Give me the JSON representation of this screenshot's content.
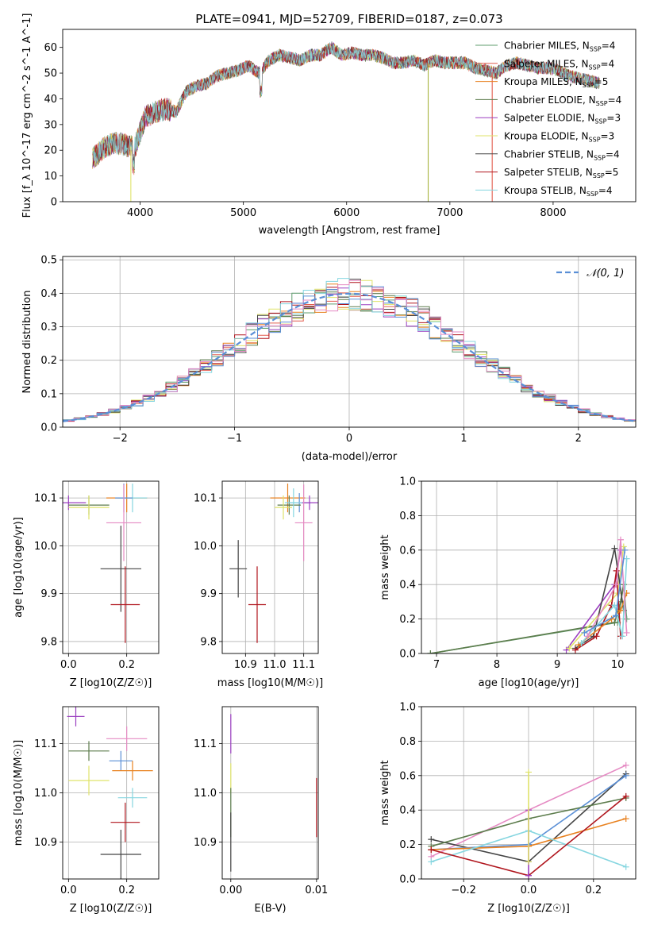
{
  "figure_title": "PLATE=0941, MJD=52709, FIBERID=0187, z=0.073",
  "chart_data": [
    {
      "id": "spectrum",
      "type": "line",
      "xlabel": "wavelength [Angstrom, rest frame]",
      "ylabel": "Flux [f_λ 10^-17 erg cm^-2 s^-1 A^-1]",
      "xlim": [
        3250,
        8800
      ],
      "ylim": [
        0,
        67
      ],
      "xticks": [
        "4000",
        "5000",
        "6000",
        "7000",
        "8000"
      ],
      "xtick_values": [
        4000,
        5000,
        6000,
        7000,
        8000
      ],
      "yticks": [
        "0",
        "10",
        "20",
        "30",
        "40",
        "50",
        "60"
      ],
      "ytick_values": [
        0,
        10,
        20,
        30,
        40,
        50,
        60
      ],
      "grid": false,
      "legend_position": "top-right",
      "x": [
        3550,
        3650,
        3750,
        3850,
        3950,
        4050,
        4150,
        4250,
        4350,
        4450,
        4550,
        4650,
        4750,
        4850,
        4950,
        5050,
        5150,
        5250,
        5350,
        5450,
        5550,
        5650,
        5750,
        5850,
        5950,
        6050,
        6150,
        6250,
        6350,
        6450,
        6550,
        6650,
        6750,
        6850,
        6950,
        7050,
        7150,
        7250,
        7350,
        7450,
        7550,
        7650,
        7750,
        7850,
        7950,
        8050,
        8150,
        8250,
        8350,
        8450
      ],
      "y": [
        17,
        21,
        23,
        22,
        21,
        33,
        35,
        36,
        35,
        43,
        45,
        46,
        49,
        50,
        51,
        53,
        50,
        55,
        57,
        56,
        55,
        57,
        57,
        60,
        57,
        58,
        57,
        57,
        56,
        54,
        54,
        55,
        53,
        55,
        54,
        54,
        54,
        52,
        51,
        50,
        53,
        54,
        53,
        52,
        52,
        51,
        49,
        48,
        47,
        46
      ],
      "series": [
        {
          "label": "Chabrier MILES, N",
          "sub": "SSP",
          "suffix": "=4",
          "color": "#5f9e6e"
        },
        {
          "label": "Salpeter MILES, N",
          "sub": "SSP",
          "suffix": "=4",
          "color": "#e25c4e"
        },
        {
          "label": "Kroupa MILES, N",
          "sub": "SSP",
          "suffix": "=5",
          "color": "#e8811f"
        },
        {
          "label": "Chabrier ELODIE, N",
          "sub": "SSP",
          "suffix": "=4",
          "color": "#5c7c4c"
        },
        {
          "label": "Salpeter ELODIE, N",
          "sub": "SSP",
          "suffix": "=3",
          "color": "#9b3fc0"
        },
        {
          "label": "Kroupa ELODIE, N",
          "sub": "SSP",
          "suffix": "=3",
          "color": "#dfe36a"
        },
        {
          "label": "Chabrier STELIB, N",
          "sub": "SSP",
          "suffix": "=4",
          "color": "#444444"
        },
        {
          "label": "Salpeter STELIB, N",
          "sub": "SSP",
          "suffix": "=5",
          "color": "#b0151d"
        },
        {
          "label": "Kroupa STELIB, N",
          "sub": "SSP",
          "suffix": "=4",
          "color": "#86d6e0"
        }
      ],
      "drop_lines": [
        {
          "x": 3910,
          "color": "#dfe36a"
        },
        {
          "x": 6790,
          "color": "#a7b440"
        },
        {
          "x": 7410,
          "color": "#e25c4e"
        }
      ]
    },
    {
      "id": "residual-histogram",
      "type": "area",
      "xlabel": "(data-model)/error",
      "ylabel": "Normed distribution",
      "xlim": [
        -2.5,
        2.5
      ],
      "ylim": [
        0,
        0.51
      ],
      "xticks": [
        "−2",
        "−1",
        "0",
        "1",
        "2"
      ],
      "xtick_values": [
        -2,
        -1,
        0,
        1,
        2
      ],
      "yticks": [
        "0.0",
        "0.1",
        "0.2",
        "0.3",
        "0.4",
        "0.5"
      ],
      "ytick_values": [
        0,
        0.1,
        0.2,
        0.3,
        0.4,
        0.5
      ],
      "grid": true,
      "legend_position": "top-right",
      "legend_label": "𝒩(0, 1)",
      "normal_color": "#5a8fd6",
      "bin_width": 0.1,
      "bin_start": -2.5,
      "bins": 50
    },
    {
      "id": "age-vs-z",
      "type": "scatter",
      "xlabel": "Z [log10(Z/Z☉)]",
      "ylabel": "age [log10(age/yr)]",
      "xlim": [
        -0.02,
        0.31
      ],
      "ylim": [
        9.775,
        10.135
      ],
      "xticks": [
        "0.0",
        "0.2"
      ],
      "xtick_values": [
        0,
        0.2
      ],
      "yticks": [
        "9.8",
        "9.9",
        "10.0",
        "10.1"
      ],
      "ytick_values": [
        9.8,
        9.9,
        10.0,
        10.1
      ],
      "grid": true,
      "points": [
        {
          "x": 0.0,
          "y": 10.09,
          "xerr": 0.06,
          "yerr": 0.015,
          "color": "#9b3fc0"
        },
        {
          "x": 0.07,
          "y": 10.085,
          "xerr": 0.07,
          "yerr": 0.02,
          "color": "#5c7c4c"
        },
        {
          "x": 0.07,
          "y": 10.08,
          "xerr": 0.07,
          "yerr": 0.025,
          "color": "#dfe36a"
        },
        {
          "x": 0.2,
          "y": 10.1,
          "xerr": 0.07,
          "yerr": 0.03,
          "color": "#e8811f"
        },
        {
          "x": 0.22,
          "y": 10.1,
          "xerr": 0.05,
          "yerr": 0.03,
          "color": "#86d6e0"
        },
        {
          "x": 0.19,
          "y": 10.1,
          "xerr": 0.03,
          "yerr": 0.03,
          "color": "#5a8fd6"
        },
        {
          "x": 0.19,
          "y": 10.048,
          "xerr": 0.06,
          "yerr": 0.08,
          "color": "#e58ac3"
        },
        {
          "x": 0.18,
          "y": 9.952,
          "xerr": 0.07,
          "yerr": 0.09,
          "color": "#444444"
        },
        {
          "x": 0.195,
          "y": 9.877,
          "xerr": 0.05,
          "yerr": 0.08,
          "color": "#b0151d"
        }
      ]
    },
    {
      "id": "age-vs-mass",
      "type": "scatter",
      "xlabel": "mass [log10(M/M☉)]",
      "ylabel": "",
      "xlim": [
        10.82,
        11.15
      ],
      "ylim": [
        9.775,
        10.135
      ],
      "xticks": [
        "10.9",
        "11.0",
        "11.1"
      ],
      "xtick_values": [
        10.9,
        11.0,
        11.1
      ],
      "yticks": [
        "9.8",
        "9.9",
        "10.0",
        "10.1"
      ],
      "ytick_values": [
        9.8,
        9.9,
        10.0,
        10.1
      ],
      "grid": true,
      "points": [
        {
          "x": 11.045,
          "y": 10.1,
          "xerr": 0.06,
          "yerr": 0.03,
          "color": "#e8811f"
        },
        {
          "x": 11.085,
          "y": 10.09,
          "xerr": 0.04,
          "yerr": 0.02,
          "color": "#5a8fd6"
        },
        {
          "x": 11.12,
          "y": 10.09,
          "xerr": 0.04,
          "yerr": 0.015,
          "color": "#9b3fc0"
        },
        {
          "x": 11.05,
          "y": 10.085,
          "xerr": 0.04,
          "yerr": 0.02,
          "color": "#5c7c4c"
        },
        {
          "x": 11.03,
          "y": 10.08,
          "xerr": 0.03,
          "yerr": 0.025,
          "color": "#dfe36a"
        },
        {
          "x": 11.065,
          "y": 10.09,
          "xerr": 0.03,
          "yerr": 0.03,
          "color": "#86d6e0"
        },
        {
          "x": 11.1,
          "y": 10.048,
          "xerr": 0.03,
          "yerr": 0.08,
          "color": "#e58ac3"
        },
        {
          "x": 10.875,
          "y": 9.952,
          "xerr": 0.03,
          "yerr": 0.06,
          "color": "#444444"
        },
        {
          "x": 10.94,
          "y": 9.877,
          "xerr": 0.03,
          "yerr": 0.08,
          "color": "#b0151d"
        }
      ]
    },
    {
      "id": "weight-vs-age",
      "type": "line",
      "xlabel": "age [log10(age/yr)]",
      "ylabel": "mass weight",
      "xlim": [
        6.75,
        10.3
      ],
      "ylim": [
        0,
        1
      ],
      "xticks": [
        "7",
        "8",
        "9",
        "10"
      ],
      "xtick_values": [
        7,
        8,
        9,
        10
      ],
      "yticks": [
        "0.0",
        "0.2",
        "0.4",
        "0.6",
        "0.8",
        "1.0"
      ],
      "ytick_values": [
        0,
        0.2,
        0.4,
        0.6,
        0.8,
        1.0
      ],
      "grid": true,
      "series": [
        {
          "color": "#5f9e6e",
          "x": [
            6.9,
            10.0,
            10.1,
            10.15
          ],
          "y": [
            0.0,
            0.18,
            0.4,
            0.2
          ]
        },
        {
          "color": "#5c7c4c",
          "x": [
            6.9,
            9.95,
            10.05,
            10.1
          ],
          "y": [
            0.0,
            0.18,
            0.3,
            0.4
          ]
        },
        {
          "color": "#9b3fc0",
          "x": [
            9.15,
            9.95,
            10.05
          ],
          "y": [
            0.02,
            0.4,
            0.6
          ]
        },
        {
          "color": "#dfe36a",
          "x": [
            9.2,
            10.0,
            10.1
          ],
          "y": [
            0.03,
            0.35,
            0.62
          ]
        },
        {
          "color": "#444444",
          "x": [
            9.3,
            9.6,
            9.95,
            10.1
          ],
          "y": [
            0.03,
            0.1,
            0.61,
            0.25
          ]
        },
        {
          "color": "#b0151d",
          "x": [
            9.3,
            9.65,
            9.9,
            9.98,
            10.05
          ],
          "y": [
            0.02,
            0.1,
            0.28,
            0.48,
            0.1
          ]
        },
        {
          "color": "#e8811f",
          "x": [
            9.35,
            9.9,
            10.05,
            10.15
          ],
          "y": [
            0.05,
            0.2,
            0.25,
            0.35
          ]
        },
        {
          "color": "#86d6e0",
          "x": [
            9.4,
            9.95,
            10.08,
            10.15
          ],
          "y": [
            0.06,
            0.28,
            0.1,
            0.55
          ]
        },
        {
          "color": "#e58ac3",
          "x": [
            9.5,
            9.98,
            10.05,
            10.15
          ],
          "y": [
            0.1,
            0.4,
            0.66,
            0.12
          ]
        },
        {
          "color": "#5a8fd6",
          "x": [
            9.45,
            9.97,
            10.12
          ],
          "y": [
            0.12,
            0.22,
            0.6
          ]
        }
      ]
    },
    {
      "id": "mass-vs-z",
      "type": "scatter",
      "xlabel": "Z [log10(Z/Z☉)]",
      "ylabel": "mass [log10(M/M☉)]",
      "xlim": [
        -0.02,
        0.31
      ],
      "ylim": [
        10.825,
        11.175
      ],
      "xticks": [
        "0.0",
        "0.2"
      ],
      "xtick_values": [
        0,
        0.2
      ],
      "yticks": [
        "10.9",
        "11.0",
        "11.1"
      ],
      "ytick_values": [
        10.9,
        11.0,
        11.1
      ],
      "grid": true,
      "points": [
        {
          "x": 0.025,
          "y": 11.155,
          "xerr": 0.03,
          "yerr": 0.02,
          "color": "#9b3fc0"
        },
        {
          "x": 0.07,
          "y": 11.085,
          "xerr": 0.07,
          "yerr": 0.02,
          "color": "#5c7c4c"
        },
        {
          "x": 0.07,
          "y": 11.025,
          "xerr": 0.07,
          "yerr": 0.03,
          "color": "#dfe36a"
        },
        {
          "x": 0.2,
          "y": 11.11,
          "xerr": 0.07,
          "yerr": 0.025,
          "color": "#e58ac3"
        },
        {
          "x": 0.18,
          "y": 11.065,
          "xerr": 0.04,
          "yerr": 0.02,
          "color": "#5a8fd6"
        },
        {
          "x": 0.22,
          "y": 11.045,
          "xerr": 0.07,
          "yerr": 0.02,
          "color": "#e8811f"
        },
        {
          "x": 0.22,
          "y": 10.99,
          "xerr": 0.05,
          "yerr": 0.02,
          "color": "#86d6e0"
        },
        {
          "x": 0.195,
          "y": 10.94,
          "xerr": 0.05,
          "yerr": 0.04,
          "color": "#b0151d"
        },
        {
          "x": 0.18,
          "y": 10.875,
          "xerr": 0.07,
          "yerr": 0.05,
          "color": "#444444"
        }
      ]
    },
    {
      "id": "mass-vs-ebv",
      "type": "scatter",
      "xlabel": "E(B-V)",
      "ylabel": "",
      "xlim": [
        -0.001,
        0.0102
      ],
      "ylim": [
        10.825,
        11.175
      ],
      "xticks": [
        "0.00",
        "0.01"
      ],
      "xtick_values": [
        0,
        0.01
      ],
      "yticks": [
        "10.9",
        "11.0",
        "11.1"
      ],
      "ytick_values": [
        10.9,
        11.0,
        11.1
      ],
      "grid": true,
      "points": [
        {
          "x": 0.0,
          "y": 11.12,
          "xerr": 0,
          "yerr": 0.04,
          "color": "#9b3fc0"
        },
        {
          "x": 0.0,
          "y": 11.03,
          "xerr": 0,
          "yerr": 0.03,
          "color": "#dfe36a"
        },
        {
          "x": 0.0,
          "y": 10.96,
          "xerr": 0,
          "yerr": 0.05,
          "color": "#5c7c4c"
        },
        {
          "x": 0.0,
          "y": 10.9,
          "xerr": 0,
          "yerr": 0.06,
          "color": "#444444"
        },
        {
          "x": 0.01,
          "y": 10.97,
          "xerr": 0,
          "yerr": 0.06,
          "color": "#b0151d"
        }
      ]
    },
    {
      "id": "weight-vs-z",
      "type": "line",
      "xlabel": "Z [log10(Z/Z☉)]",
      "ylabel": "mass weight",
      "xlim": [
        -0.33,
        0.33
      ],
      "ylim": [
        0,
        1
      ],
      "xticks": [
        "−0.2",
        "0.0",
        "0.2"
      ],
      "xtick_values": [
        -0.2,
        0.0,
        0.2
      ],
      "yticks": [
        "0.0",
        "0.2",
        "0.4",
        "0.6",
        "0.8",
        "1.0"
      ],
      "ytick_values": [
        0,
        0.2,
        0.4,
        0.6,
        0.8,
        1.0
      ],
      "grid": true,
      "series": [
        {
          "color": "#e58ac3",
          "x": [
            -0.3,
            0.0,
            0.3
          ],
          "y": [
            0.13,
            0.4,
            0.66
          ]
        },
        {
          "color": "#444444",
          "x": [
            -0.3,
            0.0,
            0.3
          ],
          "y": [
            0.23,
            0.1,
            0.61
          ]
        },
        {
          "color": "#5a8fd6",
          "x": [
            -0.3,
            0.0,
            0.3
          ],
          "y": [
            0.17,
            0.2,
            0.6
          ]
        },
        {
          "color": "#5c7c4c",
          "x": [
            -0.3,
            0.0,
            0.3
          ],
          "y": [
            0.19,
            0.35,
            0.47
          ]
        },
        {
          "color": "#e8811f",
          "x": [
            -0.3,
            0.0,
            0.3
          ],
          "y": [
            0.17,
            0.19,
            0.35
          ]
        },
        {
          "color": "#86d6e0",
          "x": [
            -0.3,
            0.0,
            0.3
          ],
          "y": [
            0.1,
            0.28,
            0.07
          ]
        },
        {
          "color": "#b0151d",
          "x": [
            -0.3,
            0.0,
            0.3
          ],
          "y": [
            0.17,
            0.02,
            0.48
          ]
        },
        {
          "color": "#9b3fc0",
          "x": [
            0.0,
            0.0
          ],
          "y": [
            0.02,
            0.4
          ]
        },
        {
          "color": "#dfe36a",
          "x": [
            0.0,
            0.0
          ],
          "y": [
            0.1,
            0.62
          ]
        }
      ]
    }
  ]
}
